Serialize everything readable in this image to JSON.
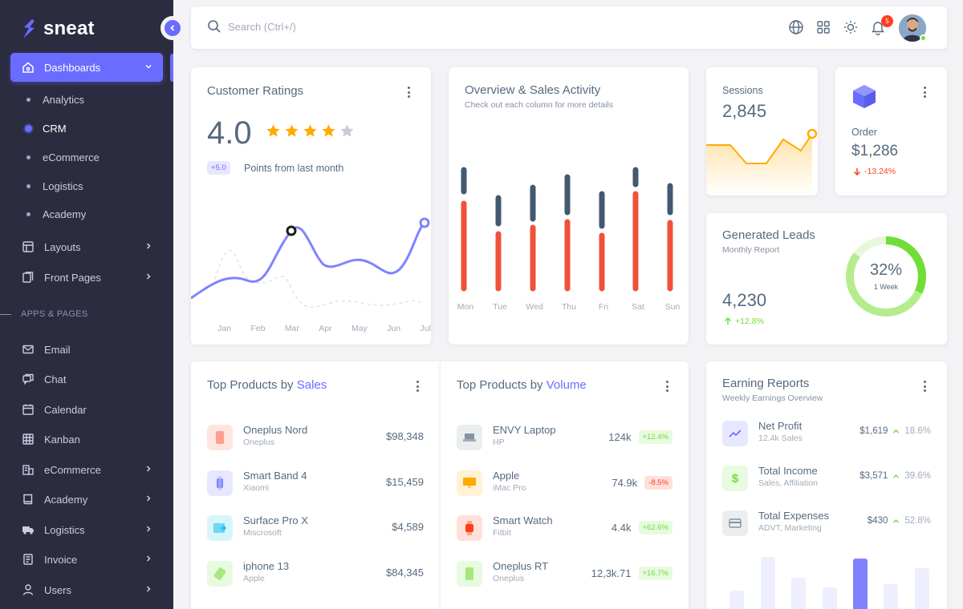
{
  "brand": {
    "name": "sneat"
  },
  "sidebar": {
    "dashboards": "Dashboards",
    "sub_items": [
      "Analytics",
      "CRM",
      "eCommerce",
      "Logistics",
      "Academy"
    ],
    "layouts": "Layouts",
    "front_pages": "Front Pages",
    "section_header": "APPS & PAGES",
    "apps": [
      "Email",
      "Chat",
      "Calendar",
      "Kanban",
      "eCommerce",
      "Academy",
      "Logistics",
      "Invoice",
      "Users"
    ]
  },
  "navbar": {
    "search_placeholder": "Search (Ctrl+/)",
    "notification_count": "5"
  },
  "ratings": {
    "title": "Customer Ratings",
    "score": "4.0",
    "stars_filled": 4,
    "stars_total": 5,
    "delta": "+5.0",
    "delta_label": "Points from last month",
    "months": [
      "Jan",
      "Feb",
      "Mar",
      "Apr",
      "May",
      "Jun",
      "Jul"
    ]
  },
  "overview": {
    "title": "Overview & Sales Activity",
    "subtitle": "Check out each column for more details",
    "days": [
      "Mon",
      "Tue",
      "Wed",
      "Thu",
      "Fri",
      "Sat",
      "Sun"
    ]
  },
  "sessions": {
    "label": "Sessions",
    "value": "2,845"
  },
  "order": {
    "label": "Order",
    "value": "$1,286",
    "change": "-13.24%"
  },
  "leads": {
    "title": "Generated Leads",
    "subtitle": "Monthly Report",
    "value": "4,230",
    "change": "+12.8%",
    "percent_label": "32%",
    "percent_sub": "1 Week",
    "percent_fraction": 0.32
  },
  "top_sales": {
    "title_plain": "Top Products by",
    "title_accent": "Sales",
    "items": [
      {
        "name": "Oneplus Nord",
        "brand": "Oneplus",
        "value": "$98,348"
      },
      {
        "name": "Smart Band 4",
        "brand": "Xiaomi",
        "value": "$15,459"
      },
      {
        "name": "Surface Pro X",
        "brand": "Miscrosoft",
        "value": "$4,589"
      },
      {
        "name": "iphone 13",
        "brand": "Apple",
        "value": "$84,345"
      }
    ]
  },
  "top_volume": {
    "title_plain": "Top Products by",
    "title_accent": "Volume",
    "items": [
      {
        "name": "ENVY Laptop",
        "brand": "HP",
        "value": "124k",
        "change": "+12.4%"
      },
      {
        "name": "Apple",
        "brand": "iMac Pro",
        "value": "74.9k",
        "change": "-8.5%"
      },
      {
        "name": "Smart Watch",
        "brand": "Fitbit",
        "value": "4.4k",
        "change": "+62.6%"
      },
      {
        "name": "Oneplus RT",
        "brand": "Oneplus",
        "value": "12,3k.71",
        "change": "+16.7%"
      }
    ]
  },
  "earnings": {
    "title": "Earning Reports",
    "subtitle": "Weekly Earnings Overview",
    "items": [
      {
        "name": "Net Profit",
        "desc": "12.4k Sales",
        "value": "$1,619",
        "change": "18.6%"
      },
      {
        "name": "Total Income",
        "desc": "Sales, Affiliation",
        "value": "$3,571",
        "change": "39.6%"
      },
      {
        "name": "Total Expenses",
        "desc": "ADVT, Marketing",
        "value": "$430",
        "change": "52.8%"
      }
    ]
  },
  "colors": {
    "primary": "#696cff",
    "danger": "#ff3e1d",
    "success": "#71dd37",
    "warning": "#ffab00",
    "dark_bar": "#435971"
  }
}
